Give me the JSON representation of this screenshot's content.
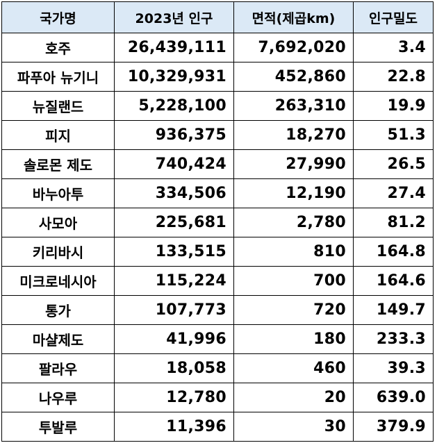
{
  "header": {
    "country": "국가명",
    "population": "2023년 인구",
    "area": "면적(제곱km)",
    "density": "인구밀도"
  },
  "colors": {
    "header_background": "#dbe9f6",
    "border": "#000000"
  },
  "rows": [
    {
      "country": "호주",
      "population": "26,439,111",
      "area": "7,692,020",
      "density": "3.4"
    },
    {
      "country": "파푸아 뉴기니",
      "population": "10,329,931",
      "area": "452,860",
      "density": "22.8"
    },
    {
      "country": "뉴질랜드",
      "population": "5,228,100",
      "area": "263,310",
      "density": "19.9"
    },
    {
      "country": "피지",
      "population": "936,375",
      "area": "18,270",
      "density": "51.3"
    },
    {
      "country": "솔로몬 제도",
      "population": "740,424",
      "area": "27,990",
      "density": "26.5"
    },
    {
      "country": "바누아투",
      "population": "334,506",
      "area": "12,190",
      "density": "27.4"
    },
    {
      "country": "사모아",
      "population": "225,681",
      "area": "2,780",
      "density": "81.2"
    },
    {
      "country": "키리바시",
      "population": "133,515",
      "area": "810",
      "density": "164.8"
    },
    {
      "country": "미크로네시아",
      "population": "115,224",
      "area": "700",
      "density": "164.6"
    },
    {
      "country": "통가",
      "population": "107,773",
      "area": "720",
      "density": "149.7"
    },
    {
      "country": "마샬제도",
      "population": "41,996",
      "area": "180",
      "density": "233.3"
    },
    {
      "country": "팔라우",
      "population": "18,058",
      "area": "460",
      "density": "39.3"
    },
    {
      "country": "나우루",
      "population": "12,780",
      "area": "20",
      "density": "639.0"
    },
    {
      "country": "투발루",
      "population": "11,396",
      "area": "30",
      "density": "379.9"
    }
  ]
}
